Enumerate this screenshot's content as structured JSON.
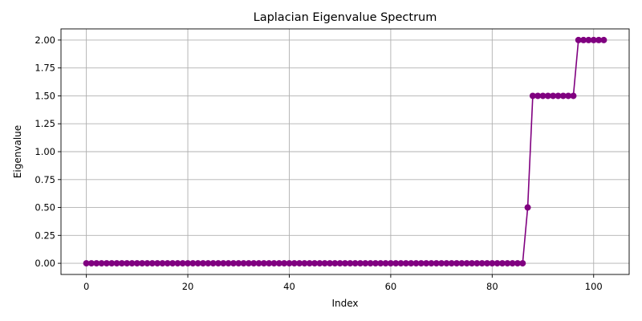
{
  "chart_data": {
    "type": "line",
    "title": "Laplacian Eigenvalue Spectrum",
    "xlabel": "Index",
    "ylabel": "Eigenvalue",
    "xlim": [
      -5,
      107
    ],
    "ylim": [
      -0.1,
      2.1
    ],
    "xticks": [
      0,
      20,
      40,
      60,
      80,
      100
    ],
    "yticks": [
      0.0,
      0.25,
      0.5,
      0.75,
      1.0,
      1.25,
      1.5,
      1.75,
      2.0
    ],
    "xtick_labels": [
      "0",
      "20",
      "40",
      "60",
      "80",
      "100"
    ],
    "ytick_labels": [
      "0.00",
      "0.25",
      "0.50",
      "0.75",
      "1.00",
      "1.25",
      "1.50",
      "1.75",
      "2.00"
    ],
    "grid": true,
    "series": [
      {
        "name": "eigenvalues",
        "color": "#800080",
        "marker": "circle",
        "x": [
          0,
          1,
          2,
          3,
          4,
          5,
          6,
          7,
          8,
          9,
          10,
          11,
          12,
          13,
          14,
          15,
          16,
          17,
          18,
          19,
          20,
          21,
          22,
          23,
          24,
          25,
          26,
          27,
          28,
          29,
          30,
          31,
          32,
          33,
          34,
          35,
          36,
          37,
          38,
          39,
          40,
          41,
          42,
          43,
          44,
          45,
          46,
          47,
          48,
          49,
          50,
          51,
          52,
          53,
          54,
          55,
          56,
          57,
          58,
          59,
          60,
          61,
          62,
          63,
          64,
          65,
          66,
          67,
          68,
          69,
          70,
          71,
          72,
          73,
          74,
          75,
          76,
          77,
          78,
          79,
          80,
          81,
          82,
          83,
          84,
          85,
          86,
          87,
          88,
          89,
          90,
          91,
          92,
          93,
          94,
          95,
          96,
          97,
          98,
          99,
          100,
          101,
          102
        ],
        "values": [
          0,
          0,
          0,
          0,
          0,
          0,
          0,
          0,
          0,
          0,
          0,
          0,
          0,
          0,
          0,
          0,
          0,
          0,
          0,
          0,
          0,
          0,
          0,
          0,
          0,
          0,
          0,
          0,
          0,
          0,
          0,
          0,
          0,
          0,
          0,
          0,
          0,
          0,
          0,
          0,
          0,
          0,
          0,
          0,
          0,
          0,
          0,
          0,
          0,
          0,
          0,
          0,
          0,
          0,
          0,
          0,
          0,
          0,
          0,
          0,
          0,
          0,
          0,
          0,
          0,
          0,
          0,
          0,
          0,
          0,
          0,
          0,
          0,
          0,
          0,
          0,
          0,
          0,
          0,
          0,
          0,
          0,
          0,
          0,
          0,
          0,
          0,
          0.5,
          1.5,
          1.5,
          1.5,
          1.5,
          1.5,
          1.5,
          1.5,
          1.5,
          1.5,
          2.0,
          2.0,
          2.0,
          2.0,
          2.0,
          2.0
        ]
      }
    ]
  }
}
